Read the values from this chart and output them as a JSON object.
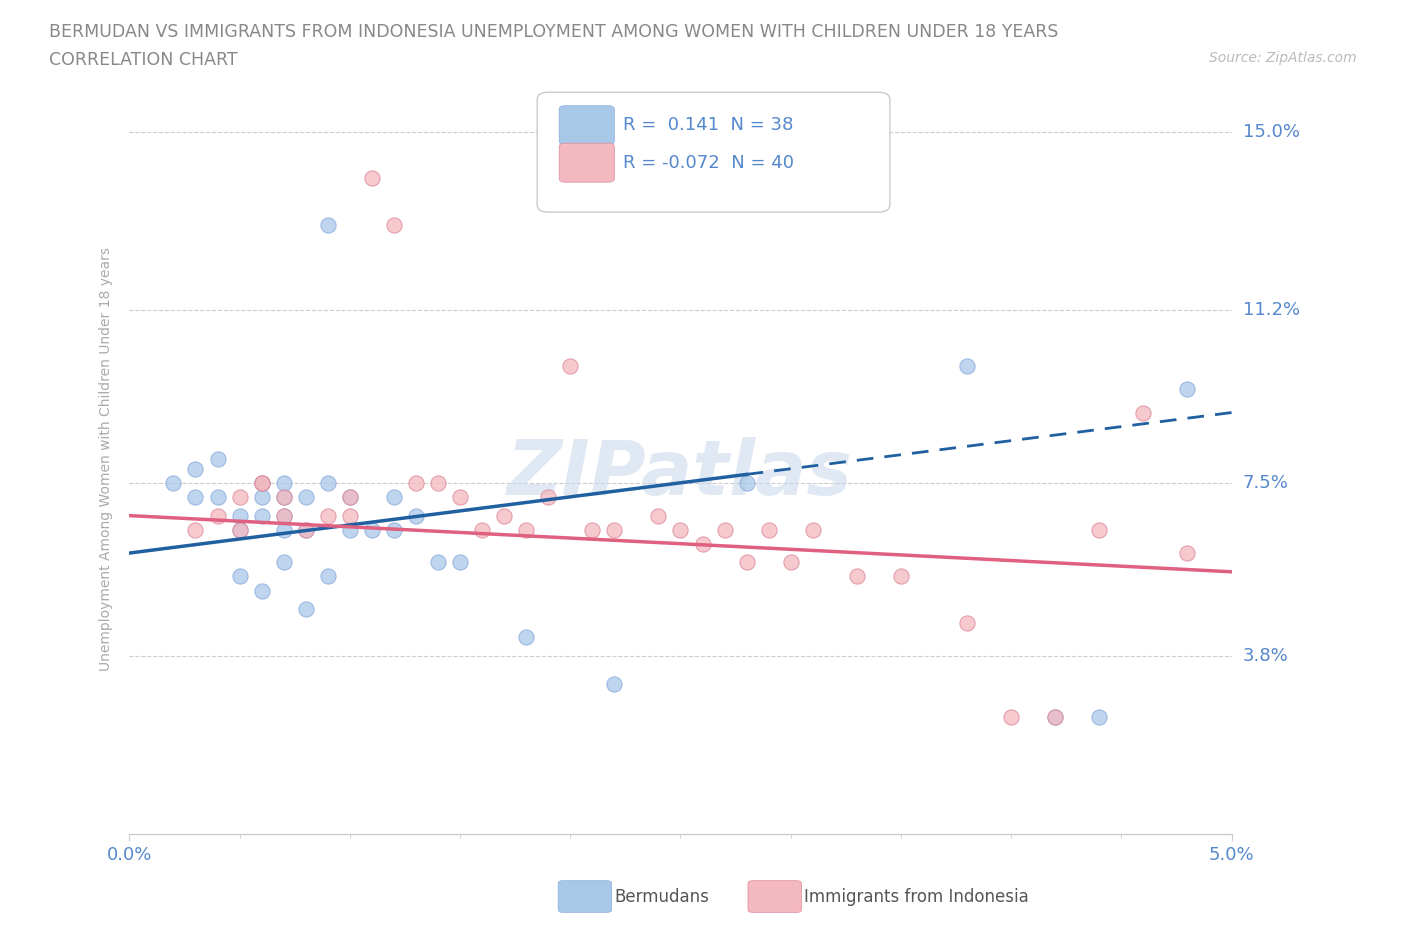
{
  "title_line1": "BERMUDAN VS IMMIGRANTS FROM INDONESIA UNEMPLOYMENT AMONG WOMEN WITH CHILDREN UNDER 18 YEARS",
  "title_line2": "CORRELATION CHART",
  "source_text": "Source: ZipAtlas.com",
  "ylabel": "Unemployment Among Women with Children Under 18 years",
  "xlim": [
    0.0,
    0.05
  ],
  "ylim": [
    0.0,
    0.16
  ],
  "ytick_values": [
    0.038,
    0.075,
    0.112,
    0.15
  ],
  "ytick_labels": [
    "3.8%",
    "7.5%",
    "11.2%",
    "15.0%"
  ],
  "blue_R": 0.141,
  "blue_N": 38,
  "pink_R": -0.072,
  "pink_N": 40,
  "blue_color": "#a8c8e8",
  "pink_color": "#f4b8c0",
  "blue_line_color": "#2060a0",
  "pink_line_color": "#e06080",
  "title_color": "#888888",
  "axis_label_color": "#5588cc",
  "watermark": "ZIPatlas",
  "bermudans_scatter_x": [
    0.002,
    0.003,
    0.003,
    0.004,
    0.004,
    0.005,
    0.005,
    0.006,
    0.006,
    0.006,
    0.007,
    0.007,
    0.007,
    0.007,
    0.008,
    0.008,
    0.009,
    0.009,
    0.01,
    0.01,
    0.011,
    0.012,
    0.012,
    0.013,
    0.014,
    0.005,
    0.006,
    0.007,
    0.008,
    0.009,
    0.015,
    0.018,
    0.022,
    0.028,
    0.038,
    0.042,
    0.044,
    0.048
  ],
  "bermudans_scatter_y": [
    0.075,
    0.078,
    0.072,
    0.08,
    0.072,
    0.068,
    0.065,
    0.072,
    0.068,
    0.075,
    0.068,
    0.072,
    0.075,
    0.065,
    0.065,
    0.072,
    0.13,
    0.075,
    0.072,
    0.065,
    0.065,
    0.065,
    0.072,
    0.068,
    0.058,
    0.055,
    0.052,
    0.058,
    0.048,
    0.055,
    0.058,
    0.042,
    0.032,
    0.075,
    0.1,
    0.025,
    0.025,
    0.095
  ],
  "indonesia_scatter_x": [
    0.003,
    0.004,
    0.005,
    0.005,
    0.006,
    0.006,
    0.007,
    0.007,
    0.008,
    0.009,
    0.01,
    0.01,
    0.011,
    0.012,
    0.013,
    0.014,
    0.015,
    0.016,
    0.017,
    0.018,
    0.019,
    0.02,
    0.021,
    0.022,
    0.024,
    0.025,
    0.026,
    0.027,
    0.028,
    0.029,
    0.03,
    0.031,
    0.033,
    0.035,
    0.038,
    0.04,
    0.042,
    0.044,
    0.046,
    0.048
  ],
  "indonesia_scatter_y": [
    0.065,
    0.068,
    0.072,
    0.065,
    0.075,
    0.075,
    0.068,
    0.072,
    0.065,
    0.068,
    0.072,
    0.068,
    0.14,
    0.13,
    0.075,
    0.075,
    0.072,
    0.065,
    0.068,
    0.065,
    0.072,
    0.1,
    0.065,
    0.065,
    0.068,
    0.065,
    0.062,
    0.065,
    0.058,
    0.065,
    0.058,
    0.065,
    0.055,
    0.055,
    0.045,
    0.025,
    0.025,
    0.065,
    0.09,
    0.06
  ],
  "blue_trend_x0": 0.0,
  "blue_trend_y0": 0.06,
  "blue_trend_x1": 0.05,
  "blue_trend_y1": 0.09,
  "pink_trend_x0": 0.0,
  "pink_trend_y0": 0.068,
  "pink_trend_x1": 0.05,
  "pink_trend_y1": 0.056
}
